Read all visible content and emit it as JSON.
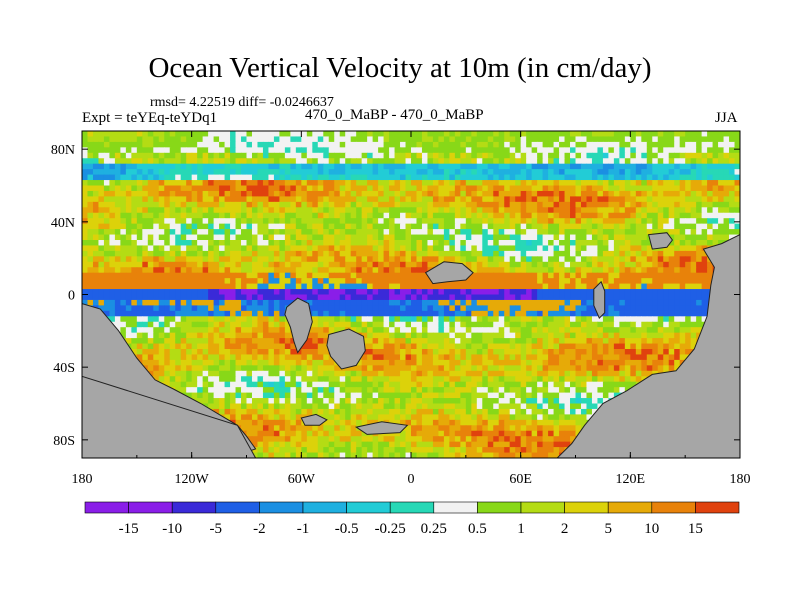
{
  "title": "Ocean Vertical Velocity at 10m (in cm/day)",
  "stats_label": "rmsd= 4.22519 diff= -0.0246637",
  "expt_label": "Expt = teYEq-teYDq1",
  "subtitle": "470_0_MaBP - 470_0_MaBP",
  "season": "JJA",
  "chart_data": {
    "type": "heatmap",
    "title": "Ocean Vertical Velocity at 10m (in cm/day)",
    "xlabel": "",
    "ylabel": "",
    "xlim": [
      -180,
      180
    ],
    "ylim": [
      -90,
      90
    ],
    "x_ticks": [
      "180",
      "120W",
      "60W",
      "0",
      "60E",
      "120E",
      "180"
    ],
    "y_ticks": [
      "80N",
      "40N",
      "0",
      "40S",
      "80S"
    ],
    "colorbar_labels": [
      "-15",
      "-10",
      "-5",
      "-2",
      "-1",
      "-0.5",
      "-0.25",
      "0.25",
      "0.5",
      "1",
      "2",
      "5",
      "10",
      "15"
    ],
    "colors": [
      "#8a1ee8",
      "#3a2ad8",
      "#1f5fe6",
      "#1b8fe2",
      "#1fb0e0",
      "#22ccd6",
      "#27d8b6",
      "#f2f2f2",
      "#88d818",
      "#b4dc14",
      "#dcd20a",
      "#e6aa08",
      "#e8820a",
      "#e0420e"
    ],
    "land_color": "#a6a6a6"
  }
}
